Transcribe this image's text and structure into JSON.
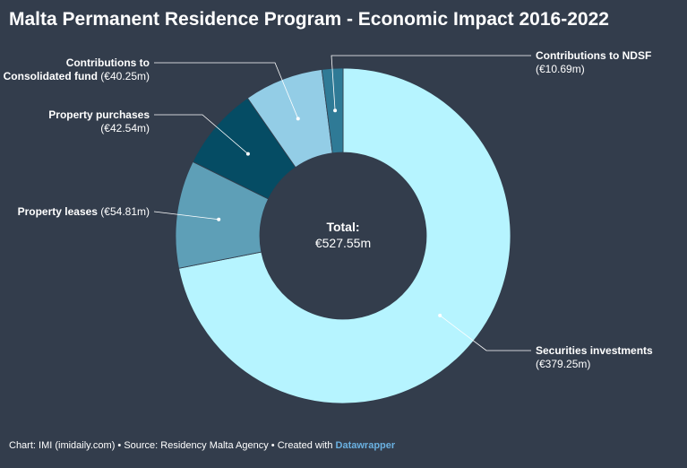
{
  "chart_data": {
    "type": "pie",
    "variant": "donut",
    "title": "Malta Permanent Residence Program - Economic Impact 2016-2022",
    "center_label": "Total:",
    "center_value": "€527.55m",
    "slices": [
      {
        "name": "Securities investments",
        "value": 379.25,
        "value_label": "(€379.25m)",
        "color": "#b6f4ff"
      },
      {
        "name": "Property leases",
        "value": 54.81,
        "value_label": "(€54.81m)",
        "color": "#5e9fb7"
      },
      {
        "name": "Property purchases",
        "value": 42.54,
        "value_label": "(€42.54m)",
        "color": "#054c64"
      },
      {
        "name": "Contributions to Consolidated fund",
        "name_lines": [
          "Contributions to",
          "Consolidated fund"
        ],
        "value": 40.25,
        "value_label": "(€40.25m)",
        "color": "#93cde6"
      },
      {
        "name": "Contributions to NDSF",
        "value": 10.69,
        "value_label": "(€10.69m)",
        "color": "#2f7a96"
      }
    ]
  },
  "footer": {
    "credit": "Chart: IMI (imidaily.com) • Source: Residency Malta Agency • Created with ",
    "brand": "Datawrapper"
  }
}
